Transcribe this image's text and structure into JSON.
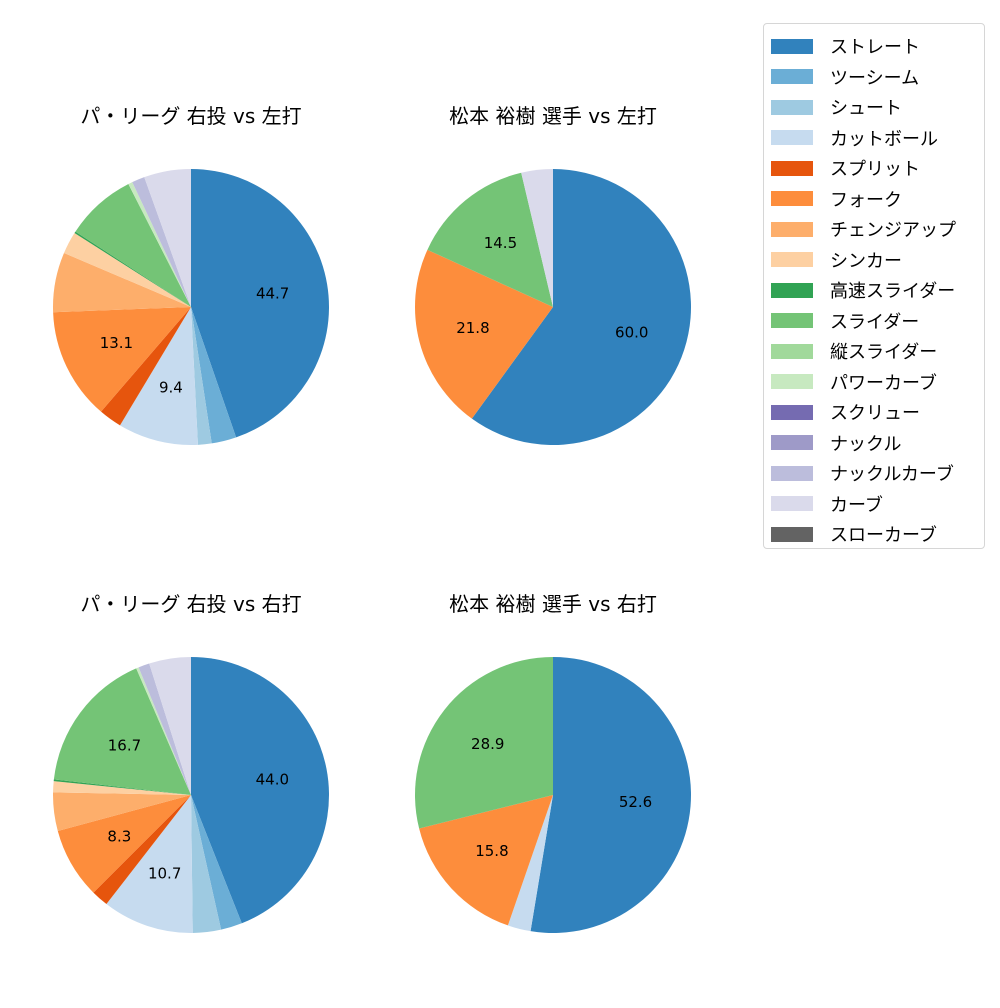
{
  "legend": {
    "items": [
      {
        "label": "ストレート",
        "color": "#3182bd"
      },
      {
        "label": "ツーシーム",
        "color": "#6baed6"
      },
      {
        "label": "シュート",
        "color": "#9ecae1"
      },
      {
        "label": "カットボール",
        "color": "#c6dbef"
      },
      {
        "label": "スプリット",
        "color": "#e6550d"
      },
      {
        "label": "フォーク",
        "color": "#fd8d3c"
      },
      {
        "label": "チェンジアップ",
        "color": "#fdae6b"
      },
      {
        "label": "シンカー",
        "color": "#fdd0a2"
      },
      {
        "label": "高速スライダー",
        "color": "#31a354"
      },
      {
        "label": "スライダー",
        "color": "#74c476"
      },
      {
        "label": "縦スライダー",
        "color": "#a1d99b"
      },
      {
        "label": "パワーカーブ",
        "color": "#c7e9c0"
      },
      {
        "label": "スクリュー",
        "color": "#756bb1"
      },
      {
        "label": "ナックル",
        "color": "#9e9ac8"
      },
      {
        "label": "ナックルカーブ",
        "color": "#bcbddc"
      },
      {
        "label": "カーブ",
        "color": "#dadaeb"
      },
      {
        "label": "スローカーブ",
        "color": "#636363"
      }
    ]
  },
  "chart_data": [
    {
      "type": "pie",
      "title": "パ・リーグ 右投 vs 左打",
      "labels": [
        "ストレート",
        "ツーシーム",
        "シュート",
        "カットボール",
        "スプリット",
        "フォーク",
        "チェンジアップ",
        "シンカー",
        "高速スライダー",
        "スライダー",
        "パワーカーブ",
        "ナックルカーブ",
        "カーブ"
      ],
      "values": [
        44.7,
        2.9,
        1.6,
        9.4,
        2.7,
        13.1,
        7.0,
        2.6,
        0.2,
        8.3,
        0.5,
        1.5,
        5.5
      ],
      "shown_labels": [
        "44.7",
        "",
        "",
        "9.4",
        "",
        "13.1",
        "",
        "",
        "",
        "",
        "",
        "",
        ""
      ],
      "startangle": 90,
      "direction": "clockwise"
    },
    {
      "type": "pie",
      "title": "松本 裕樹 選手 vs 左打",
      "labels": [
        "ストレート",
        "フォーク",
        "スライダー",
        "カーブ"
      ],
      "values": [
        60.0,
        21.8,
        14.5,
        3.7
      ],
      "shown_labels": [
        "60.0",
        "21.8",
        "14.5",
        ""
      ],
      "startangle": 90,
      "direction": "clockwise"
    },
    {
      "type": "pie",
      "title": "パ・リーグ 右投 vs 右打",
      "labels": [
        "ストレート",
        "ツーシーム",
        "シュート",
        "カットボール",
        "スプリット",
        "フォーク",
        "チェンジアップ",
        "シンカー",
        "高速スライダー",
        "スライダー",
        "パワーカーブ",
        "ナックルカーブ",
        "カーブ"
      ],
      "values": [
        44.0,
        2.5,
        3.3,
        10.7,
        2.0,
        8.3,
        4.5,
        1.3,
        0.2,
        16.7,
        0.3,
        1.3,
        4.9
      ],
      "shown_labels": [
        "44.0",
        "",
        "",
        "10.7",
        "",
        "8.3",
        "",
        "",
        "",
        "16.7",
        "",
        "",
        ""
      ],
      "startangle": 90,
      "direction": "clockwise"
    },
    {
      "type": "pie",
      "title": "松本 裕樹 選手 vs 右打",
      "labels": [
        "ストレート",
        "カットボール",
        "フォーク",
        "スライダー"
      ],
      "values": [
        52.6,
        2.7,
        15.8,
        28.9
      ],
      "shown_labels": [
        "52.6",
        "",
        "15.8",
        "28.9"
      ],
      "startangle": 90,
      "direction": "clockwise"
    }
  ]
}
